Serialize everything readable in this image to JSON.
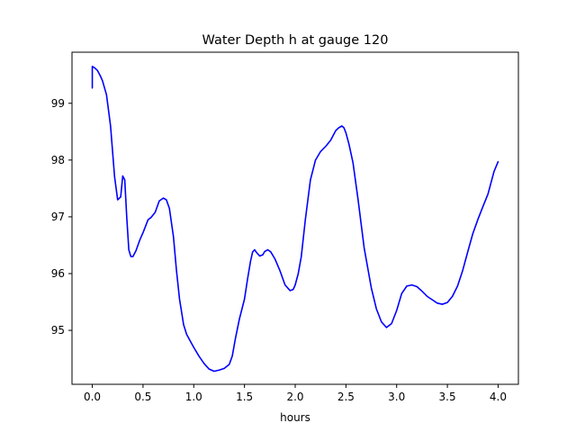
{
  "chart_data": {
    "type": "line",
    "title": "Water Depth h at gauge 120",
    "xlabel": "hours",
    "ylabel": "",
    "xlim": [
      -0.2,
      4.2
    ],
    "ylim": [
      94.05,
      99.9
    ],
    "xticks": [
      0.0,
      0.5,
      1.0,
      1.5,
      2.0,
      2.5,
      3.0,
      3.5,
      4.0
    ],
    "xtick_labels": [
      "0.0",
      "0.5",
      "1.0",
      "1.5",
      "2.0",
      "2.5",
      "3.0",
      "3.5",
      "4.0"
    ],
    "yticks": [
      95,
      96,
      97,
      98,
      99
    ],
    "ytick_labels": [
      "95",
      "96",
      "97",
      "98",
      "99"
    ],
    "grid": false,
    "series": [
      {
        "color": "#0000ff",
        "x": [
          0.0,
          0.0,
          0.02,
          0.05,
          0.08,
          0.1,
          0.14,
          0.18,
          0.2,
          0.22,
          0.25,
          0.28,
          0.3,
          0.32,
          0.34,
          0.36,
          0.38,
          0.4,
          0.43,
          0.47,
          0.5,
          0.55,
          0.58,
          0.62,
          0.66,
          0.7,
          0.73,
          0.76,
          0.8,
          0.83,
          0.86,
          0.9,
          0.93,
          0.96,
          1.0,
          1.05,
          1.1,
          1.15,
          1.2,
          1.25,
          1.3,
          1.35,
          1.38,
          1.41,
          1.45,
          1.5,
          1.53,
          1.56,
          1.58,
          1.6,
          1.62,
          1.65,
          1.68,
          1.7,
          1.73,
          1.76,
          1.8,
          1.85,
          1.9,
          1.95,
          1.98,
          2.0,
          2.03,
          2.06,
          2.1,
          2.15,
          2.2,
          2.25,
          2.3,
          2.35,
          2.4,
          2.43,
          2.46,
          2.48,
          2.5,
          2.53,
          2.57,
          2.62,
          2.68,
          2.75,
          2.8,
          2.85,
          2.9,
          2.95,
          3.0,
          3.05,
          3.1,
          3.15,
          3.2,
          3.25,
          3.3,
          3.35,
          3.4,
          3.45,
          3.5,
          3.55,
          3.6,
          3.65,
          3.7,
          3.75,
          3.8,
          3.85,
          3.9,
          3.93,
          3.96,
          4.0
        ],
        "y": [
          99.27,
          99.65,
          99.63,
          99.58,
          99.48,
          99.4,
          99.15,
          98.6,
          98.15,
          97.7,
          97.3,
          97.35,
          97.72,
          97.65,
          96.98,
          96.42,
          96.3,
          96.3,
          96.4,
          96.6,
          96.72,
          96.95,
          96.99,
          97.08,
          97.28,
          97.33,
          97.3,
          97.15,
          96.65,
          96.05,
          95.55,
          95.1,
          94.93,
          94.83,
          94.7,
          94.55,
          94.42,
          94.32,
          94.28,
          94.3,
          94.33,
          94.4,
          94.55,
          94.85,
          95.2,
          95.55,
          95.9,
          96.22,
          96.38,
          96.42,
          96.37,
          96.31,
          96.33,
          96.39,
          96.42,
          96.38,
          96.26,
          96.05,
          95.8,
          95.7,
          95.72,
          95.8,
          96.0,
          96.3,
          96.95,
          97.65,
          98.0,
          98.15,
          98.24,
          98.35,
          98.52,
          98.57,
          98.6,
          98.57,
          98.48,
          98.28,
          97.95,
          97.3,
          96.45,
          95.75,
          95.38,
          95.15,
          95.05,
          95.12,
          95.35,
          95.65,
          95.78,
          95.8,
          95.77,
          95.69,
          95.6,
          95.54,
          95.48,
          95.46,
          95.49,
          95.6,
          95.78,
          96.05,
          96.38,
          96.7,
          96.95,
          97.18,
          97.4,
          97.6,
          97.8,
          97.97
        ]
      }
    ]
  }
}
